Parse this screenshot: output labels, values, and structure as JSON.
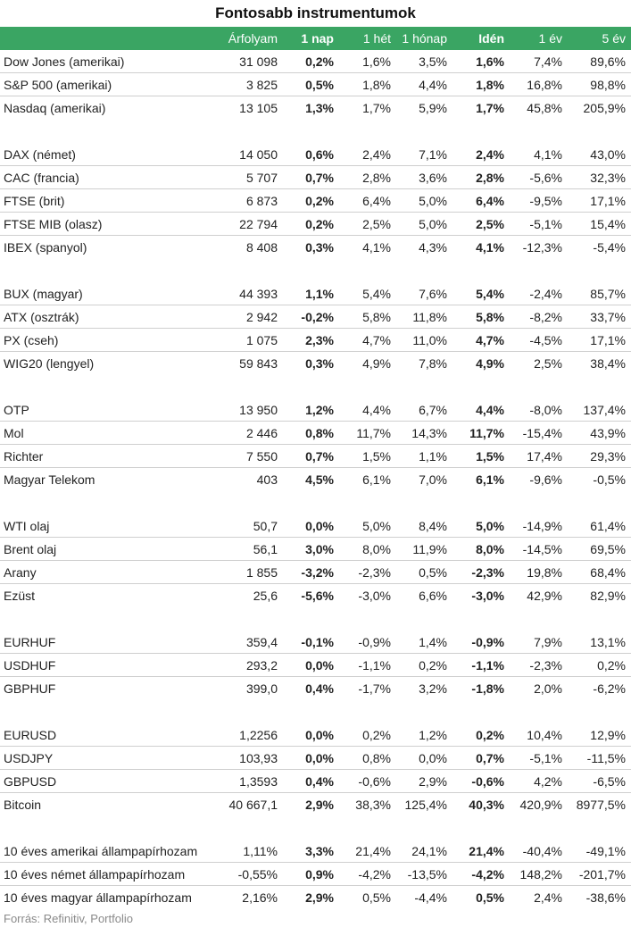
{
  "title": "Fontosabb instrumentumok",
  "header": {
    "name": "",
    "price": "Árfolyam",
    "d1": "1 nap",
    "w1": "1 hét",
    "m1": "1 hónap",
    "ytd": "Idén",
    "y1": "1 év",
    "y5": "5 év"
  },
  "groups": [
    [
      [
        "Dow Jones (amerikai)",
        "31 098",
        "0,2%",
        "1,6%",
        "3,5%",
        "1,6%",
        "7,4%",
        "89,6%"
      ],
      [
        "S&P 500 (amerikai)",
        "3 825",
        "0,5%",
        "1,8%",
        "4,4%",
        "1,8%",
        "16,8%",
        "98,8%"
      ],
      [
        "Nasdaq (amerikai)",
        "13 105",
        "1,3%",
        "1,7%",
        "5,9%",
        "1,7%",
        "45,8%",
        "205,9%"
      ]
    ],
    [
      [
        "DAX (német)",
        "14 050",
        "0,6%",
        "2,4%",
        "7,1%",
        "2,4%",
        "4,1%",
        "43,0%"
      ],
      [
        "CAC (francia)",
        "5 707",
        "0,7%",
        "2,8%",
        "3,6%",
        "2,8%",
        "-5,6%",
        "32,3%"
      ],
      [
        "FTSE (brit)",
        "6 873",
        "0,2%",
        "6,4%",
        "5,0%",
        "6,4%",
        "-9,5%",
        "17,1%"
      ],
      [
        "FTSE MIB (olasz)",
        "22 794",
        "0,2%",
        "2,5%",
        "5,0%",
        "2,5%",
        "-5,1%",
        "15,4%"
      ],
      [
        "IBEX (spanyol)",
        "8 408",
        "0,3%",
        "4,1%",
        "4,3%",
        "4,1%",
        "-12,3%",
        "-5,4%"
      ]
    ],
    [
      [
        "BUX (magyar)",
        "44 393",
        "1,1%",
        "5,4%",
        "7,6%",
        "5,4%",
        "-2,4%",
        "85,7%"
      ],
      [
        "ATX (osztrák)",
        "2 942",
        "-0,2%",
        "5,8%",
        "11,8%",
        "5,8%",
        "-8,2%",
        "33,7%"
      ],
      [
        "PX (cseh)",
        "1 075",
        "2,3%",
        "4,7%",
        "11,0%",
        "4,7%",
        "-4,5%",
        "17,1%"
      ],
      [
        "WIG20 (lengyel)",
        "59 843",
        "0,3%",
        "4,9%",
        "7,8%",
        "4,9%",
        "2,5%",
        "38,4%"
      ]
    ],
    [
      [
        "OTP",
        "13 950",
        "1,2%",
        "4,4%",
        "6,7%",
        "4,4%",
        "-8,0%",
        "137,4%"
      ],
      [
        "Mol",
        "2 446",
        "0,8%",
        "11,7%",
        "14,3%",
        "11,7%",
        "-15,4%",
        "43,9%"
      ],
      [
        "Richter",
        "7 550",
        "0,7%",
        "1,5%",
        "1,1%",
        "1,5%",
        "17,4%",
        "29,3%"
      ],
      [
        "Magyar Telekom",
        "403",
        "4,5%",
        "6,1%",
        "7,0%",
        "6,1%",
        "-9,6%",
        "-0,5%"
      ]
    ],
    [
      [
        "WTI olaj",
        "50,7",
        "0,0%",
        "5,0%",
        "8,4%",
        "5,0%",
        "-14,9%",
        "61,4%"
      ],
      [
        "Brent olaj",
        "56,1",
        "3,0%",
        "8,0%",
        "11,9%",
        "8,0%",
        "-14,5%",
        "69,5%"
      ],
      [
        "Arany",
        "1 855",
        "-3,2%",
        "-2,3%",
        "0,5%",
        "-2,3%",
        "19,8%",
        "68,4%"
      ],
      [
        "Ezüst",
        "25,6",
        "-5,6%",
        "-3,0%",
        "6,6%",
        "-3,0%",
        "42,9%",
        "82,9%"
      ]
    ],
    [
      [
        "EURHUF",
        "359,4",
        "-0,1%",
        "-0,9%",
        "1,4%",
        "-0,9%",
        "7,9%",
        "13,1%"
      ],
      [
        "USDHUF",
        "293,2",
        "0,0%",
        "-1,1%",
        "0,2%",
        "-1,1%",
        "-2,3%",
        "0,2%"
      ],
      [
        "GBPHUF",
        "399,0",
        "0,4%",
        "-1,7%",
        "3,2%",
        "-1,8%",
        "2,0%",
        "-6,2%"
      ]
    ],
    [
      [
        "EURUSD",
        "1,2256",
        "0,0%",
        "0,2%",
        "1,2%",
        "0,2%",
        "10,4%",
        "12,9%"
      ],
      [
        "USDJPY",
        "103,93",
        "0,0%",
        "0,8%",
        "0,0%",
        "0,7%",
        "-5,1%",
        "-11,5%"
      ],
      [
        "GBPUSD",
        "1,3593",
        "0,4%",
        "-0,6%",
        "2,9%",
        "-0,6%",
        "4,2%",
        "-6,5%"
      ],
      [
        "Bitcoin",
        "40 667,1",
        "2,9%",
        "38,3%",
        "125,4%",
        "40,3%",
        "420,9%",
        "8977,5%"
      ]
    ],
    [
      [
        "10 éves amerikai állampapírhozam",
        "1,11%",
        "3,3%",
        "21,4%",
        "24,1%",
        "21,4%",
        "-40,4%",
        "-49,1%"
      ],
      [
        "10 éves német állampapírhozam",
        "-0,55%",
        "0,9%",
        "-4,2%",
        "-13,5%",
        "-4,2%",
        "148,2%",
        "-201,7%"
      ],
      [
        "10 éves magyar állampapírhozam",
        "2,16%",
        "2,9%",
        "0,5%",
        "-4,4%",
        "0,5%",
        "2,4%",
        "-38,6%"
      ]
    ]
  ],
  "source": "Forrás: Refinitiv, Portfolio"
}
